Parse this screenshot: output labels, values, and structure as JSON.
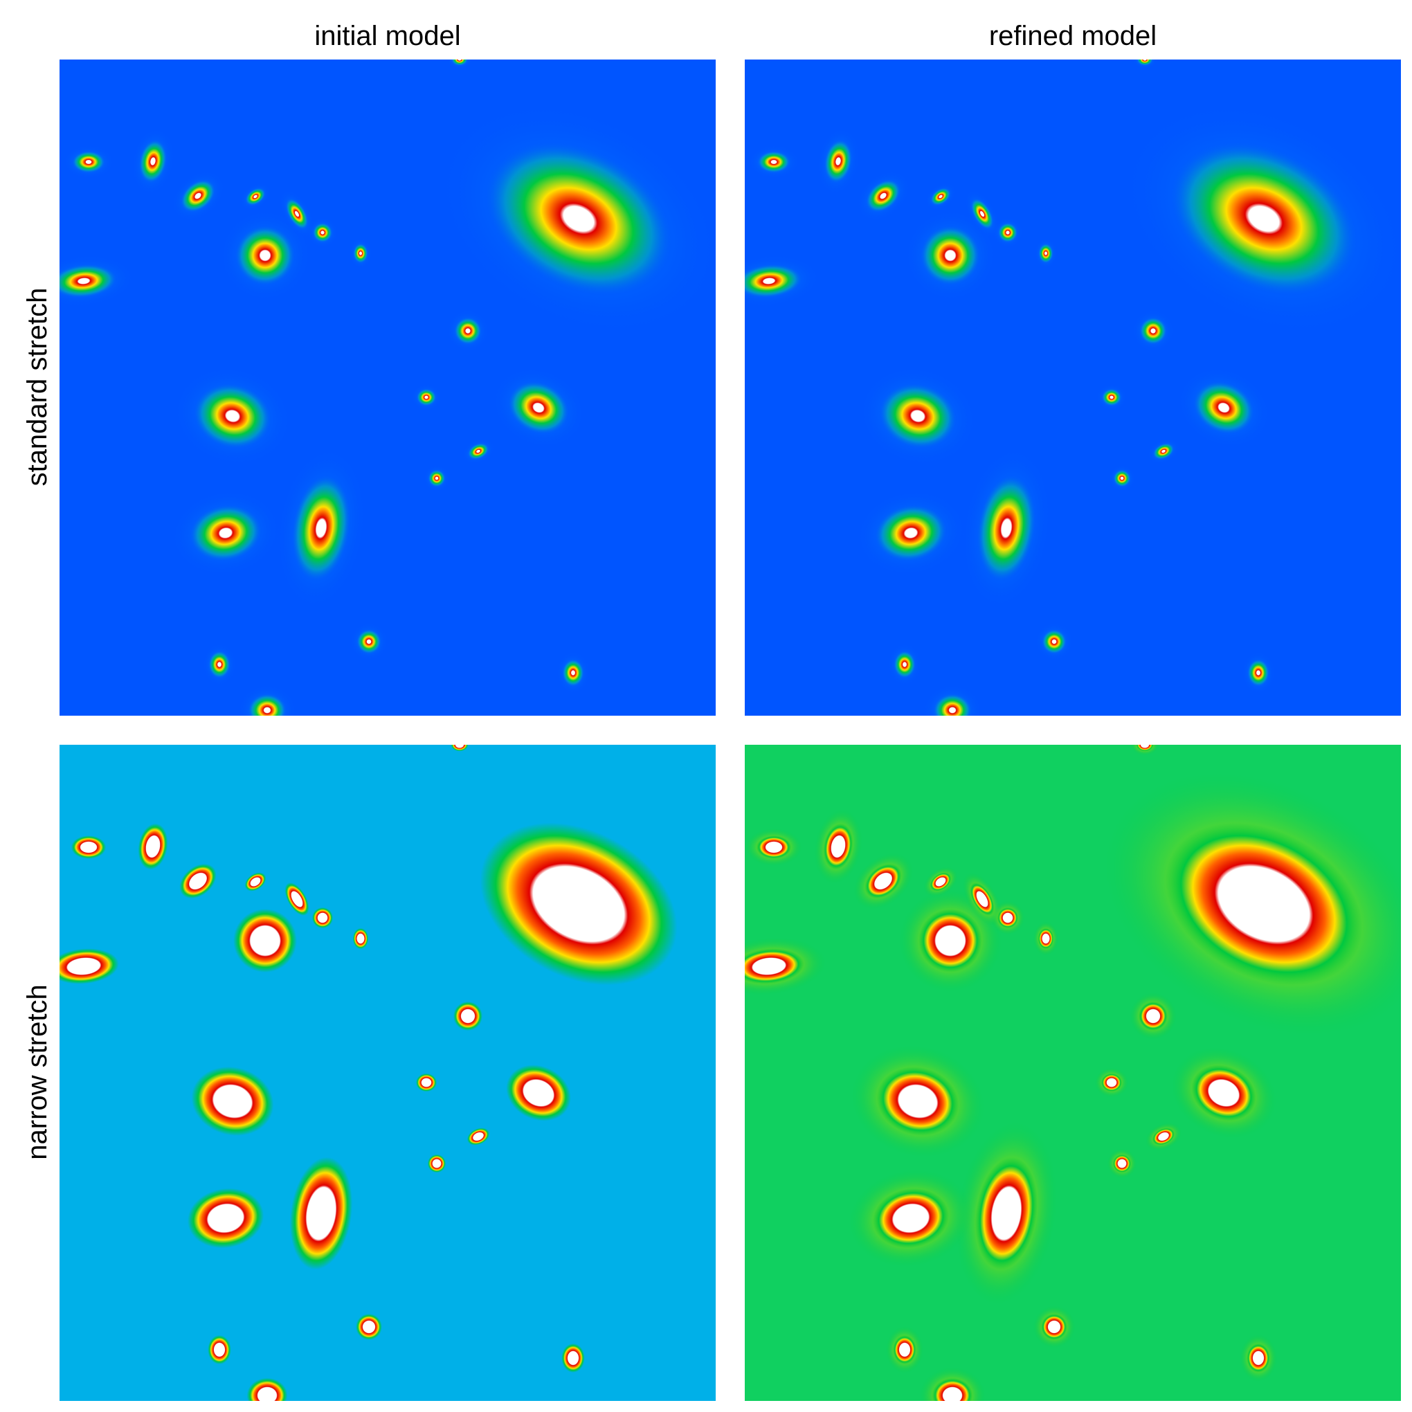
{
  "columns": [
    "initial model",
    "refined model"
  ],
  "rows": [
    "standard stretch",
    "narrow stretch"
  ],
  "colors": {
    "standard_background": "#0055ff",
    "narrow_background_initial": "#00b0e8",
    "narrow_background_refined": "#10d060",
    "halo": "#00c840",
    "ring_yellow": "#ffe000",
    "ring_red": "#e00000",
    "core": "#ffffff"
  },
  "panels": [
    {
      "id": "initial-standard",
      "column": "initial model",
      "row": "standard stretch",
      "colormap": "rainbow"
    },
    {
      "id": "refined-standard",
      "column": "refined model",
      "row": "standard stretch",
      "colormap": "rainbow"
    },
    {
      "id": "initial-narrow",
      "column": "initial model",
      "row": "narrow stretch",
      "colormap": "rainbow"
    },
    {
      "id": "refined-narrow",
      "column": "refined model",
      "row": "narrow stretch",
      "colormap": "rainbow"
    }
  ]
}
